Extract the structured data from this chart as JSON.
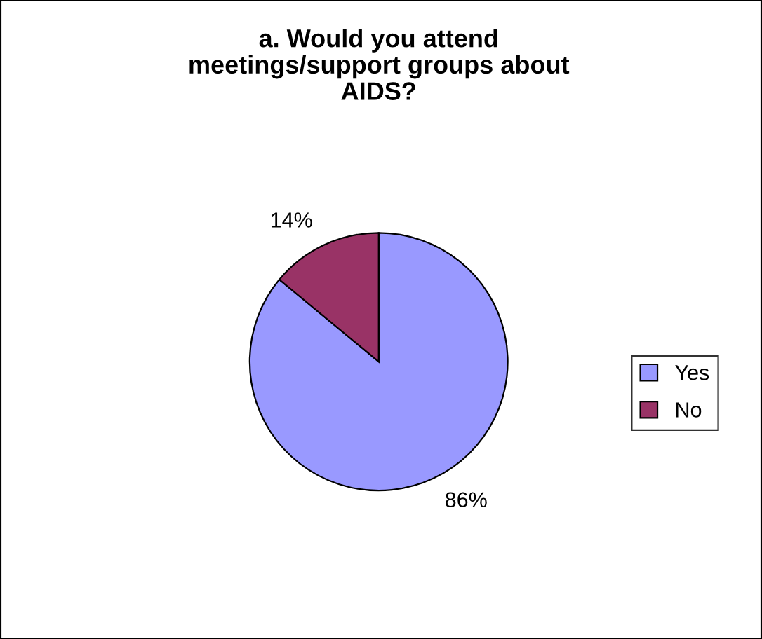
{
  "chart_data": {
    "type": "pie",
    "title": "a. Would you attend\nmeetings/support groups about\nAIDS?",
    "categories": [
      "Yes",
      "No"
    ],
    "values": [
      86,
      14
    ],
    "colors": [
      "#9999ff",
      "#993366"
    ],
    "value_labels": [
      "86%",
      "14%"
    ],
    "legend": "right"
  }
}
